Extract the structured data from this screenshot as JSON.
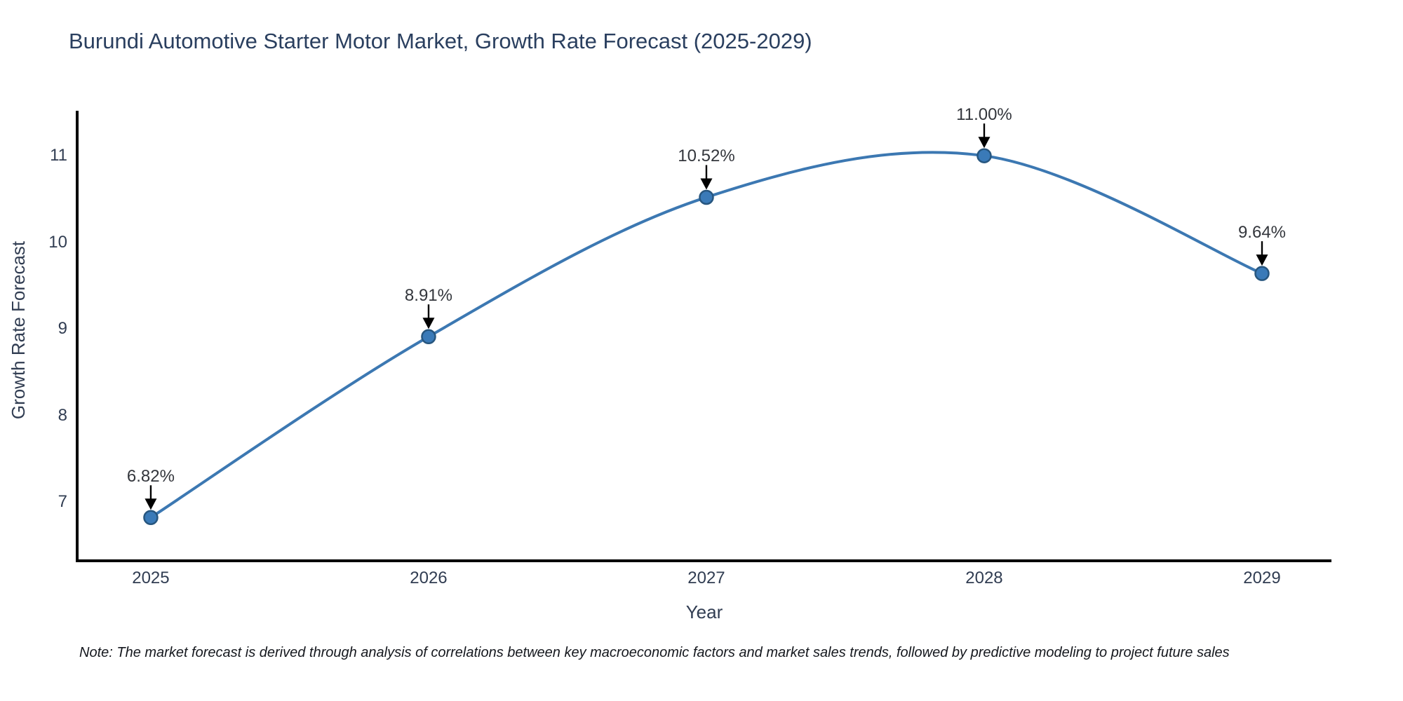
{
  "title": "Burundi Automotive Starter Motor Market, Growth Rate Forecast (2025-2029)",
  "note": "Note: The market forecast is derived through analysis of correlations between key macroeconomic factors and market sales trends, followed by predictive modeling to project future sales",
  "chart_data": {
    "type": "line",
    "line_shape": "spline",
    "title": "Burundi Automotive Starter Motor Market, Growth Rate Forecast (2025-2029)",
    "xlabel": "Year",
    "ylabel": "Growth Rate Forecast",
    "x": [
      2025,
      2026,
      2027,
      2028,
      2029
    ],
    "series": [
      {
        "name": "Growth Rate Forecast",
        "values": [
          6.82,
          8.91,
          10.52,
          11.0,
          9.64
        ]
      }
    ],
    "point_labels": [
      "6.82%",
      "8.91%",
      "10.52%",
      "11.00%",
      "9.64%"
    ],
    "x_tick_labels": [
      "2025",
      "2026",
      "2027",
      "2028",
      "2029"
    ],
    "y_ticks": [
      7,
      8,
      9,
      10,
      11
    ],
    "xlim": [
      2024.735,
      2029.25
    ],
    "ylim": [
      6.32,
      11.52
    ],
    "grid": false,
    "legend": "none",
    "annotation_style": "value label with downward black arrow to each point",
    "colors": {
      "line": "#3c78b2",
      "marker_fill": "#3a7ab8",
      "marker_edge": "#27567f",
      "axis_line": "#000000",
      "title_text": "#2a3f5f",
      "tick_text": "#313d52",
      "annotation_text": "#33363c",
      "note_text": "#15181e",
      "background": "#ffffff"
    }
  }
}
